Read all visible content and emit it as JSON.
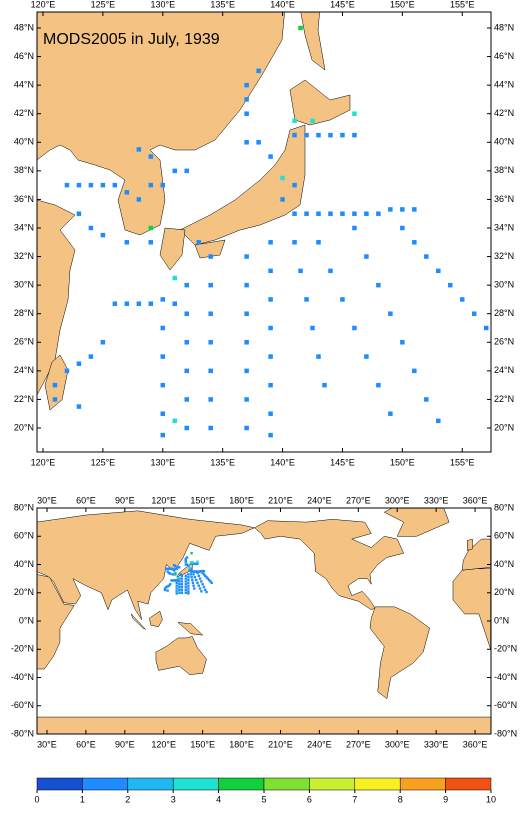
{
  "title": "MODS2005 in July, 1939",
  "top_map": {
    "lonlim": [
      119.5,
      157.4
    ],
    "latlim": [
      18.32,
      49.12
    ],
    "lon_ticks": [
      {
        "value": 120,
        "label": "120°E"
      },
      {
        "value": 125,
        "label": "125°E"
      },
      {
        "value": 130,
        "label": "130°E"
      },
      {
        "value": 135,
        "label": "135°E"
      },
      {
        "value": 140,
        "label": "140°E"
      },
      {
        "value": 145,
        "label": "145°E"
      },
      {
        "value": 150,
        "label": "150°E"
      },
      {
        "value": 155,
        "label": "155°E"
      }
    ],
    "lat_ticks": [
      {
        "value": 20,
        "label": "20°N"
      },
      {
        "value": 22,
        "label": "22°N"
      },
      {
        "value": 24,
        "label": "24°N"
      },
      {
        "value": 26,
        "label": "26°N"
      },
      {
        "value": 28,
        "label": "28°N"
      },
      {
        "value": 30,
        "label": "30°N"
      },
      {
        "value": 32,
        "label": "32°N"
      },
      {
        "value": 34,
        "label": "34°N"
      },
      {
        "value": 36,
        "label": "36°N"
      },
      {
        "value": 38,
        "label": "38°N"
      },
      {
        "value": 40,
        "label": "40°N"
      },
      {
        "value": 42,
        "label": "42°N"
      },
      {
        "value": 44,
        "label": "44°N"
      },
      {
        "value": 46,
        "label": "46°N"
      },
      {
        "value": 48,
        "label": "48°N"
      }
    ]
  },
  "bottom_map": {
    "lonlim": [
      22.3,
      372.3
    ],
    "latlim": [
      -80,
      80
    ],
    "lon_ticks": [
      {
        "value": 30,
        "label": "30°E"
      },
      {
        "value": 60,
        "label": "60°E"
      },
      {
        "value": 90,
        "label": "90°E"
      },
      {
        "value": 120,
        "label": "120°E"
      },
      {
        "value": 150,
        "label": "150°E"
      },
      {
        "value": 180,
        "label": "180°E"
      },
      {
        "value": 210,
        "label": "210°E"
      },
      {
        "value": 240,
        "label": "240°E"
      },
      {
        "value": 270,
        "label": "270°E"
      },
      {
        "value": 300,
        "label": "300°E"
      },
      {
        "value": 330,
        "label": "330°E"
      },
      {
        "value": 360,
        "label": "360°E"
      }
    ],
    "lat_ticks": [
      {
        "value": -80,
        "label": "-80°N"
      },
      {
        "value": -60,
        "label": "-60°N"
      },
      {
        "value": -40,
        "label": "-40°N"
      },
      {
        "value": -20,
        "label": "-20°N"
      },
      {
        "value": 0,
        "label": "0°N"
      },
      {
        "value": 20,
        "label": "20°N"
      },
      {
        "value": 40,
        "label": "40°N"
      },
      {
        "value": 60,
        "label": "60°N"
      },
      {
        "value": 80,
        "label": "80°N"
      }
    ]
  },
  "colorbar": {
    "ticks": [
      0,
      1,
      2,
      3,
      4,
      5,
      6,
      7,
      8,
      9,
      10
    ],
    "colors": [
      "#1450d0",
      "#1e8cff",
      "#20b8f0",
      "#20e0d0",
      "#10d040",
      "#80e030",
      "#c8f030",
      "#f8f020",
      "#f8a020",
      "#f05010"
    ]
  },
  "observations": [
    {
      "lon": 141,
      "lat": 35,
      "value": 1
    },
    {
      "lon": 142,
      "lat": 35,
      "value": 1
    },
    {
      "lon": 143,
      "lat": 35,
      "value": 1
    },
    {
      "lon": 144,
      "lat": 35,
      "value": 1
    },
    {
      "lon": 145,
      "lat": 35,
      "value": 1
    },
    {
      "lon": 146,
      "lat": 35,
      "value": 1
    },
    {
      "lon": 147,
      "lat": 35,
      "value": 1
    },
    {
      "lon": 148,
      "lat": 35,
      "value": 1
    },
    {
      "lon": 149,
      "lat": 35.3,
      "value": 1
    },
    {
      "lon": 150,
      "lat": 35.3,
      "value": 1
    },
    {
      "lon": 151,
      "lat": 35.3,
      "value": 1
    },
    {
      "lon": 150,
      "lat": 34,
      "value": 1
    },
    {
      "lon": 151,
      "lat": 33,
      "value": 1
    },
    {
      "lon": 152,
      "lat": 32,
      "value": 1
    },
    {
      "lon": 153,
      "lat": 31,
      "value": 1
    },
    {
      "lon": 154,
      "lat": 30,
      "value": 1
    },
    {
      "lon": 155,
      "lat": 29,
      "value": 1
    },
    {
      "lon": 156,
      "lat": 28,
      "value": 1
    },
    {
      "lon": 157,
      "lat": 27,
      "value": 1
    },
    {
      "lon": 146,
      "lat": 34,
      "value": 1
    },
    {
      "lon": 147,
      "lat": 32,
      "value": 1
    },
    {
      "lon": 148,
      "lat": 30,
      "value": 1
    },
    {
      "lon": 149,
      "lat": 28,
      "value": 1
    },
    {
      "lon": 150,
      "lat": 26,
      "value": 1
    },
    {
      "lon": 151,
      "lat": 24,
      "value": 1
    },
    {
      "lon": 152,
      "lat": 22,
      "value": 1
    },
    {
      "lon": 153,
      "lat": 20.5,
      "value": 1
    },
    {
      "lon": 143,
      "lat": 33,
      "value": 1
    },
    {
      "lon": 144,
      "lat": 31,
      "value": 1
    },
    {
      "lon": 145,
      "lat": 29,
      "value": 1
    },
    {
      "lon": 146,
      "lat": 27,
      "value": 1
    },
    {
      "lon": 147,
      "lat": 25,
      "value": 1
    },
    {
      "lon": 148,
      "lat": 23,
      "value": 1
    },
    {
      "lon": 149,
      "lat": 21,
      "value": 1
    },
    {
      "lon": 141,
      "lat": 33,
      "value": 1
    },
    {
      "lon": 141.5,
      "lat": 31,
      "value": 1
    },
    {
      "lon": 142,
      "lat": 29,
      "value": 1
    },
    {
      "lon": 142.5,
      "lat": 27,
      "value": 1
    },
    {
      "lon": 143,
      "lat": 25,
      "value": 1
    },
    {
      "lon": 143.5,
      "lat": 23,
      "value": 1
    },
    {
      "lon": 139,
      "lat": 33,
      "value": 1
    },
    {
      "lon": 139,
      "lat": 31,
      "value": 1
    },
    {
      "lon": 139,
      "lat": 29,
      "value": 1
    },
    {
      "lon": 139,
      "lat": 27,
      "value": 1
    },
    {
      "lon": 139,
      "lat": 25,
      "value": 1
    },
    {
      "lon": 139,
      "lat": 23,
      "value": 1
    },
    {
      "lon": 139,
      "lat": 21,
      "value": 1
    },
    {
      "lon": 139,
      "lat": 19.5,
      "value": 1
    },
    {
      "lon": 137,
      "lat": 32,
      "value": 1
    },
    {
      "lon": 137,
      "lat": 30,
      "value": 1
    },
    {
      "lon": 137,
      "lat": 28,
      "value": 1
    },
    {
      "lon": 137,
      "lat": 26,
      "value": 1
    },
    {
      "lon": 137,
      "lat": 24,
      "value": 1
    },
    {
      "lon": 137,
      "lat": 22,
      "value": 1
    },
    {
      "lon": 137,
      "lat": 20,
      "value": 1
    },
    {
      "lon": 134,
      "lat": 32,
      "value": 1
    },
    {
      "lon": 134,
      "lat": 30,
      "value": 1
    },
    {
      "lon": 134,
      "lat": 28,
      "value": 1
    },
    {
      "lon": 134,
      "lat": 26,
      "value": 1
    },
    {
      "lon": 134,
      "lat": 24,
      "value": 1
    },
    {
      "lon": 134,
      "lat": 22,
      "value": 1
    },
    {
      "lon": 134,
      "lat": 20,
      "value": 1
    },
    {
      "lon": 132,
      "lat": 30,
      "value": 1
    },
    {
      "lon": 132,
      "lat": 28,
      "value": 1
    },
    {
      "lon": 132,
      "lat": 26,
      "value": 1
    },
    {
      "lon": 132,
      "lat": 24,
      "value": 1
    },
    {
      "lon": 132,
      "lat": 22,
      "value": 1
    },
    {
      "lon": 132,
      "lat": 20,
      "value": 1
    },
    {
      "lon": 130,
      "lat": 29,
      "value": 1
    },
    {
      "lon": 130,
      "lat": 27,
      "value": 1
    },
    {
      "lon": 130,
      "lat": 25,
      "value": 1
    },
    {
      "lon": 130,
      "lat": 23,
      "value": 1
    },
    {
      "lon": 130,
      "lat": 21,
      "value": 1
    },
    {
      "lon": 130,
      "lat": 19.5,
      "value": 1
    },
    {
      "lon": 126,
      "lat": 28.7,
      "value": 1
    },
    {
      "lon": 127,
      "lat": 28.7,
      "value": 1
    },
    {
      "lon": 128,
      "lat": 28.7,
      "value": 1
    },
    {
      "lon": 129,
      "lat": 28.7,
      "value": 1
    },
    {
      "lon": 131,
      "lat": 28.7,
      "value": 1
    },
    {
      "lon": 125,
      "lat": 26,
      "value": 1
    },
    {
      "lon": 124,
      "lat": 25,
      "value": 1
    },
    {
      "lon": 123,
      "lat": 24.5,
      "value": 1
    },
    {
      "lon": 122,
      "lat": 24,
      "value": 1
    },
    {
      "lon": 121,
      "lat": 23,
      "value": 1
    },
    {
      "lon": 121,
      "lat": 22,
      "value": 1
    },
    {
      "lon": 123,
      "lat": 21.5,
      "value": 1
    },
    {
      "lon": 122,
      "lat": 37,
      "value": 1
    },
    {
      "lon": 123,
      "lat": 37,
      "value": 1
    },
    {
      "lon": 124,
      "lat": 37,
      "value": 1
    },
    {
      "lon": 125,
      "lat": 37,
      "value": 1
    },
    {
      "lon": 126,
      "lat": 37,
      "value": 1
    },
    {
      "lon": 127,
      "lat": 36.5,
      "value": 1
    },
    {
      "lon": 128,
      "lat": 36,
      "value": 1
    },
    {
      "lon": 129,
      "lat": 37,
      "value": 1
    },
    {
      "lon": 130,
      "lat": 37,
      "value": 1
    },
    {
      "lon": 131,
      "lat": 38,
      "value": 1
    },
    {
      "lon": 132,
      "lat": 38,
      "value": 1
    },
    {
      "lon": 129,
      "lat": 39,
      "value": 1
    },
    {
      "lon": 128,
      "lat": 39.5,
      "value": 1
    },
    {
      "lon": 123,
      "lat": 35,
      "value": 1
    },
    {
      "lon": 124,
      "lat": 34,
      "value": 1
    },
    {
      "lon": 125,
      "lat": 33.5,
      "value": 1
    },
    {
      "lon": 127,
      "lat": 33,
      "value": 1
    },
    {
      "lon": 129,
      "lat": 33,
      "value": 1
    },
    {
      "lon": 133,
      "lat": 33,
      "value": 1
    },
    {
      "lon": 140,
      "lat": 36,
      "value": 1
    },
    {
      "lon": 141,
      "lat": 37,
      "value": 1
    },
    {
      "lon": 139,
      "lat": 39,
      "value": 1
    },
    {
      "lon": 138,
      "lat": 40,
      "value": 1
    },
    {
      "lon": 137,
      "lat": 40,
      "value": 1
    },
    {
      "lon": 141,
      "lat": 40.5,
      "value": 1
    },
    {
      "lon": 142,
      "lat": 40.5,
      "value": 1
    },
    {
      "lon": 143,
      "lat": 40.5,
      "value": 1
    },
    {
      "lon": 144,
      "lat": 40.5,
      "value": 1
    },
    {
      "lon": 145,
      "lat": 40.5,
      "value": 1
    },
    {
      "lon": 146,
      "lat": 40.5,
      "value": 1
    },
    {
      "lon": 137,
      "lat": 42,
      "value": 1
    },
    {
      "lon": 137,
      "lat": 43,
      "value": 1
    },
    {
      "lon": 137,
      "lat": 44,
      "value": 1
    },
    {
      "lon": 138,
      "lat": 45,
      "value": 1
    },
    {
      "lon": 141,
      "lat": 41.5,
      "value": 3
    },
    {
      "lon": 142.5,
      "lat": 41.5,
      "value": 3
    },
    {
      "lon": 131,
      "lat": 30.5,
      "value": 3
    },
    {
      "lon": 129,
      "lat": 34,
      "value": 4
    },
    {
      "lon": 140,
      "lat": 37.5,
      "value": 3
    },
    {
      "lon": 131,
      "lat": 20.5,
      "value": 3
    },
    {
      "lon": 146,
      "lat": 42,
      "value": 3
    },
    {
      "lon": 141.5,
      "lat": 48,
      "value": 4.5
    }
  ]
}
